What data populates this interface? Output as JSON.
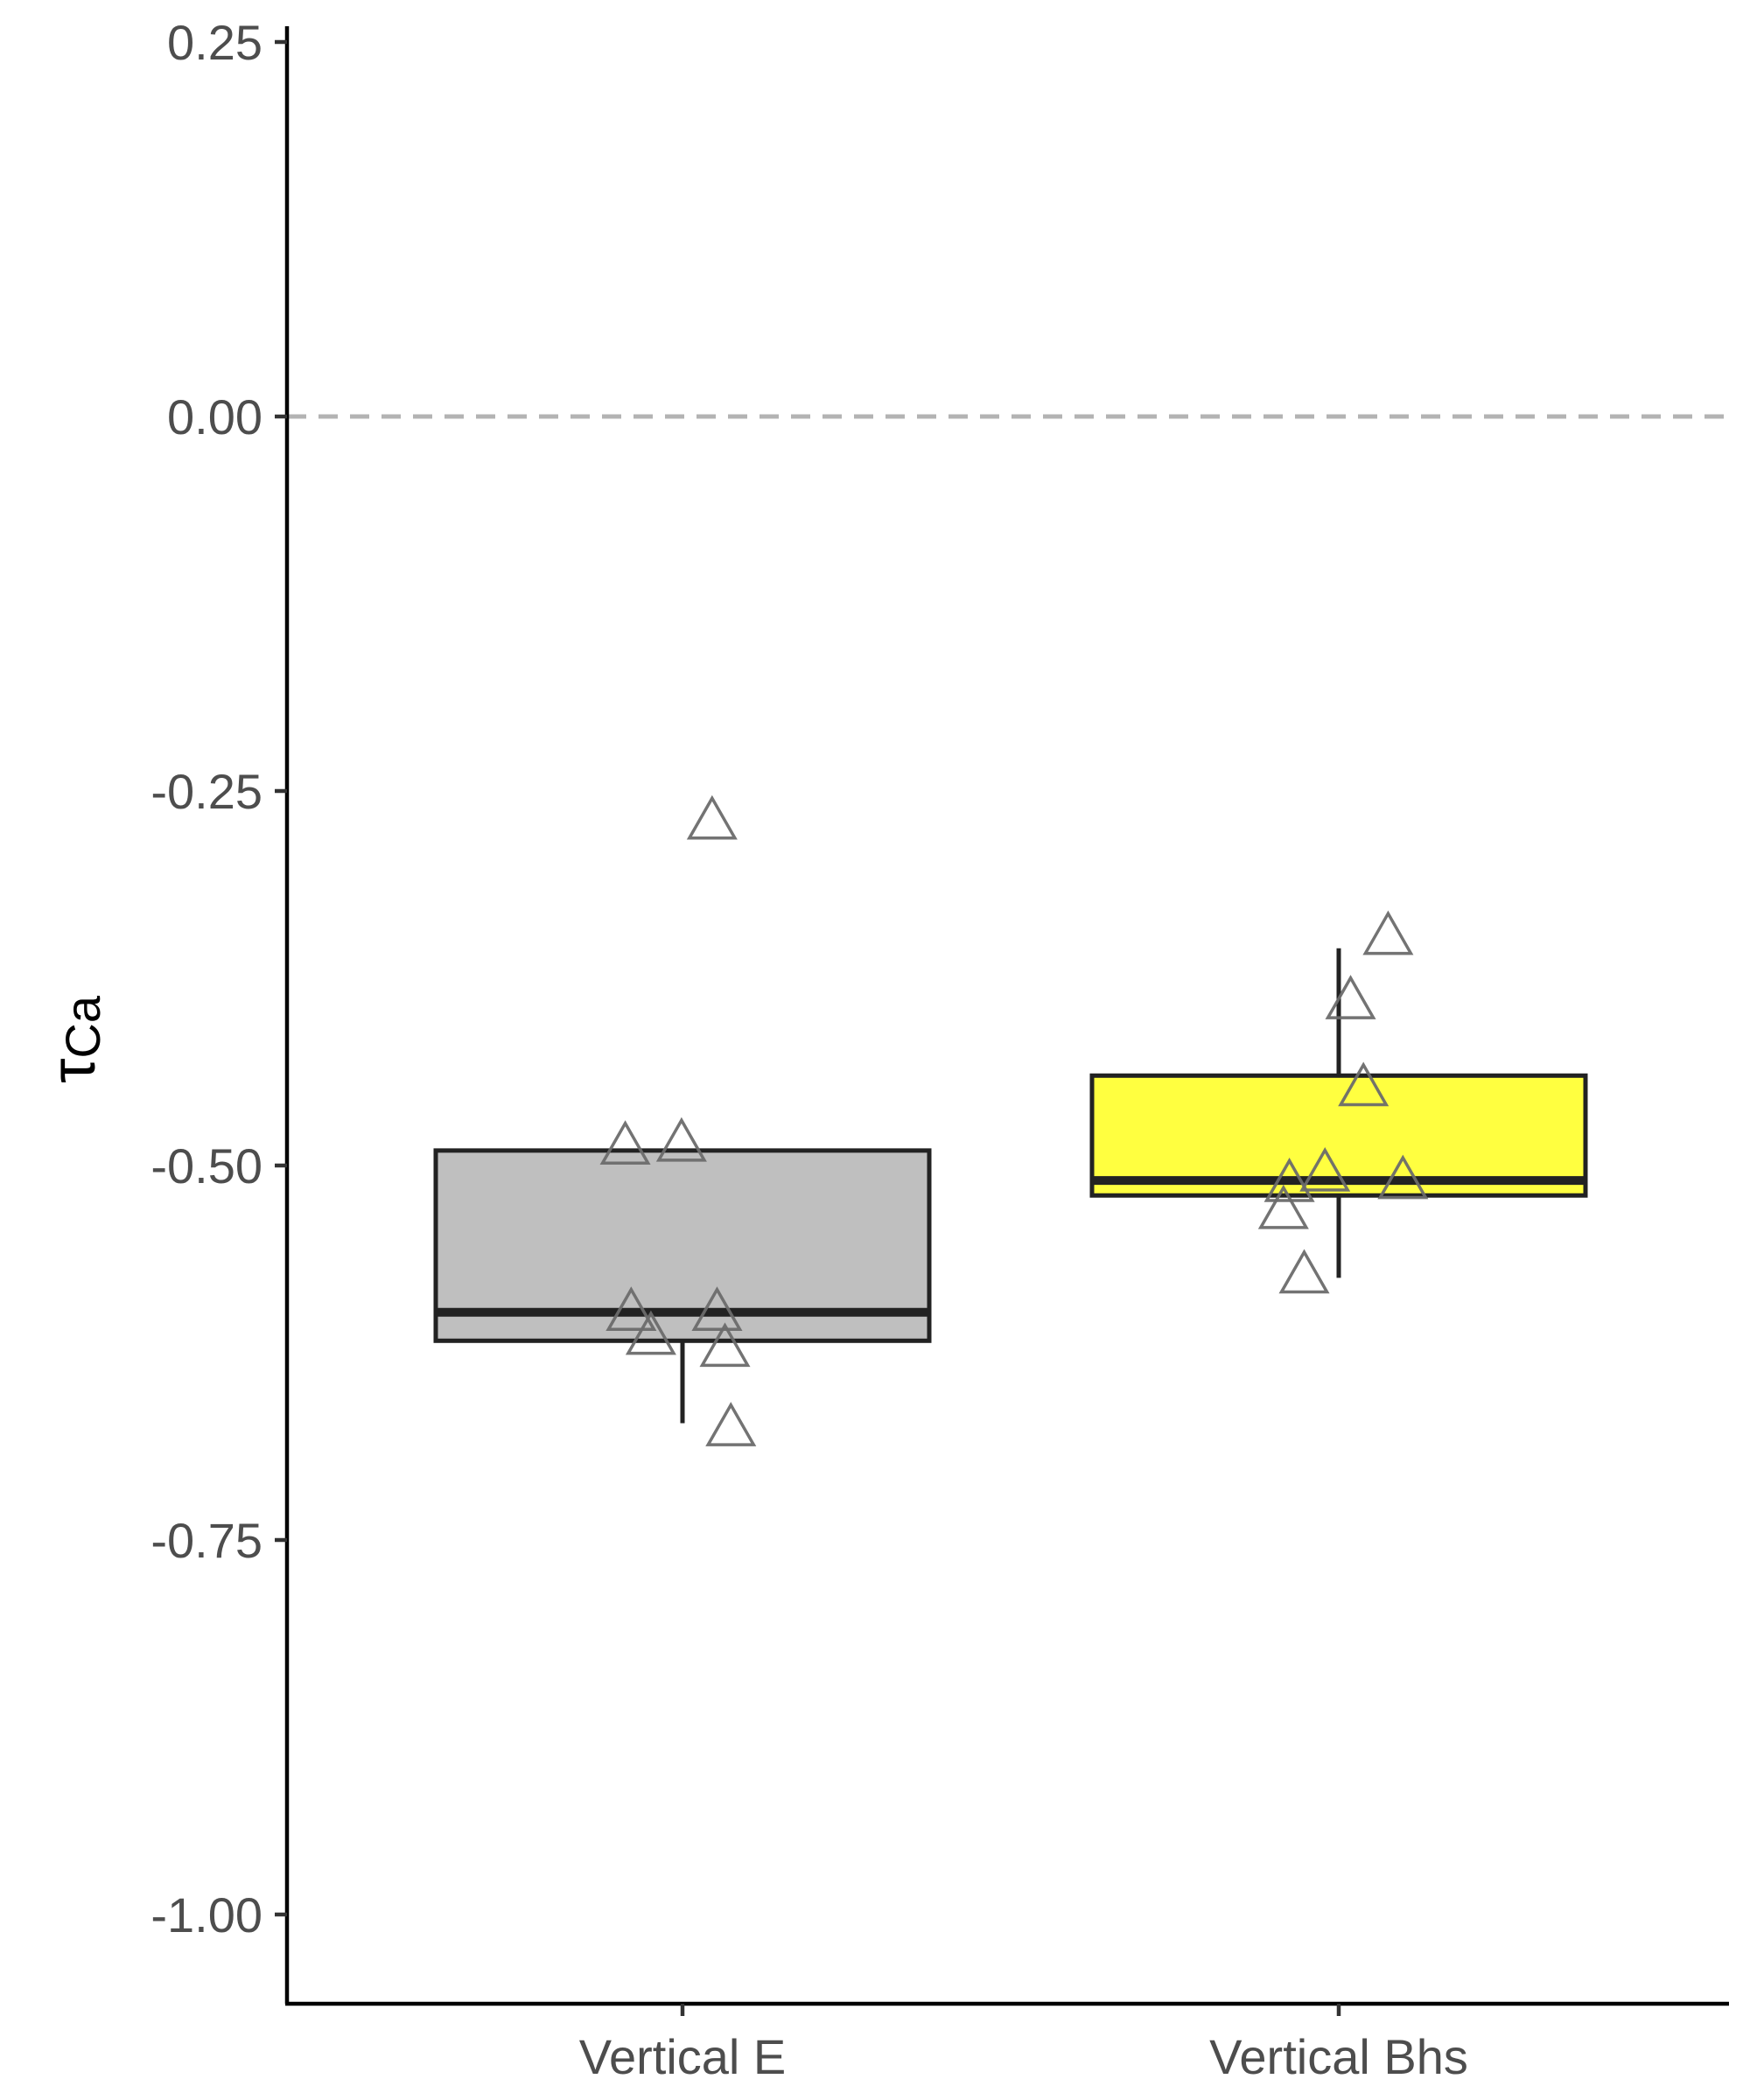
{
  "chart_data": {
    "type": "boxplot",
    "categories": [
      "Vertical E",
      "Vertical Bhs"
    ],
    "ylabel": {
      "symbol": "τ",
      "subscript": "Ca"
    },
    "ylim": [
      -1.06,
      0.26
    ],
    "yticks": [
      {
        "value": 0.25,
        "label": "0.25"
      },
      {
        "value": 0.0,
        "label": "0.00"
      },
      {
        "value": -0.25,
        "label": "-0.25"
      },
      {
        "value": -0.5,
        "label": "-0.50"
      },
      {
        "value": -0.75,
        "label": "-0.75"
      },
      {
        "value": -1.0,
        "label": "-1.00"
      }
    ],
    "reference_line": {
      "y": 0.0,
      "style": "dashed",
      "color": "#b3b3b3"
    },
    "grid": false,
    "boxes": [
      {
        "category": "Vertical E",
        "fill": "#bfbfbf",
        "whisker_low": -0.672,
        "q1": -0.617,
        "median": -0.598,
        "q3": -0.49,
        "whisker_high": -0.49,
        "points": [
          {
            "jitter": -0.58,
            "y": -0.487
          },
          {
            "jitter": -0.01,
            "y": -0.485
          },
          {
            "jitter": 0.3,
            "y": -0.27
          },
          {
            "jitter": -0.52,
            "y": -0.598
          },
          {
            "jitter": -0.32,
            "y": -0.614
          },
          {
            "jitter": 0.35,
            "y": -0.598
          },
          {
            "jitter": 0.43,
            "y": -0.622
          },
          {
            "jitter": 0.49,
            "y": -0.675
          }
        ]
      },
      {
        "category": "Vertical Bhs",
        "fill": "#ffff40",
        "whisker_low": -0.575,
        "q1": -0.52,
        "median": -0.51,
        "q3": -0.44,
        "whisker_high": -0.355,
        "points": [
          {
            "jitter": 0.5,
            "y": -0.347
          },
          {
            "jitter": 0.12,
            "y": -0.39
          },
          {
            "jitter": 0.25,
            "y": -0.448
          },
          {
            "jitter": -0.5,
            "y": -0.512
          },
          {
            "jitter": -0.14,
            "y": -0.505
          },
          {
            "jitter": -0.56,
            "y": -0.53
          },
          {
            "jitter": 0.65,
            "y": -0.51
          },
          {
            "jitter": -0.35,
            "y": -0.573
          }
        ]
      }
    ]
  }
}
